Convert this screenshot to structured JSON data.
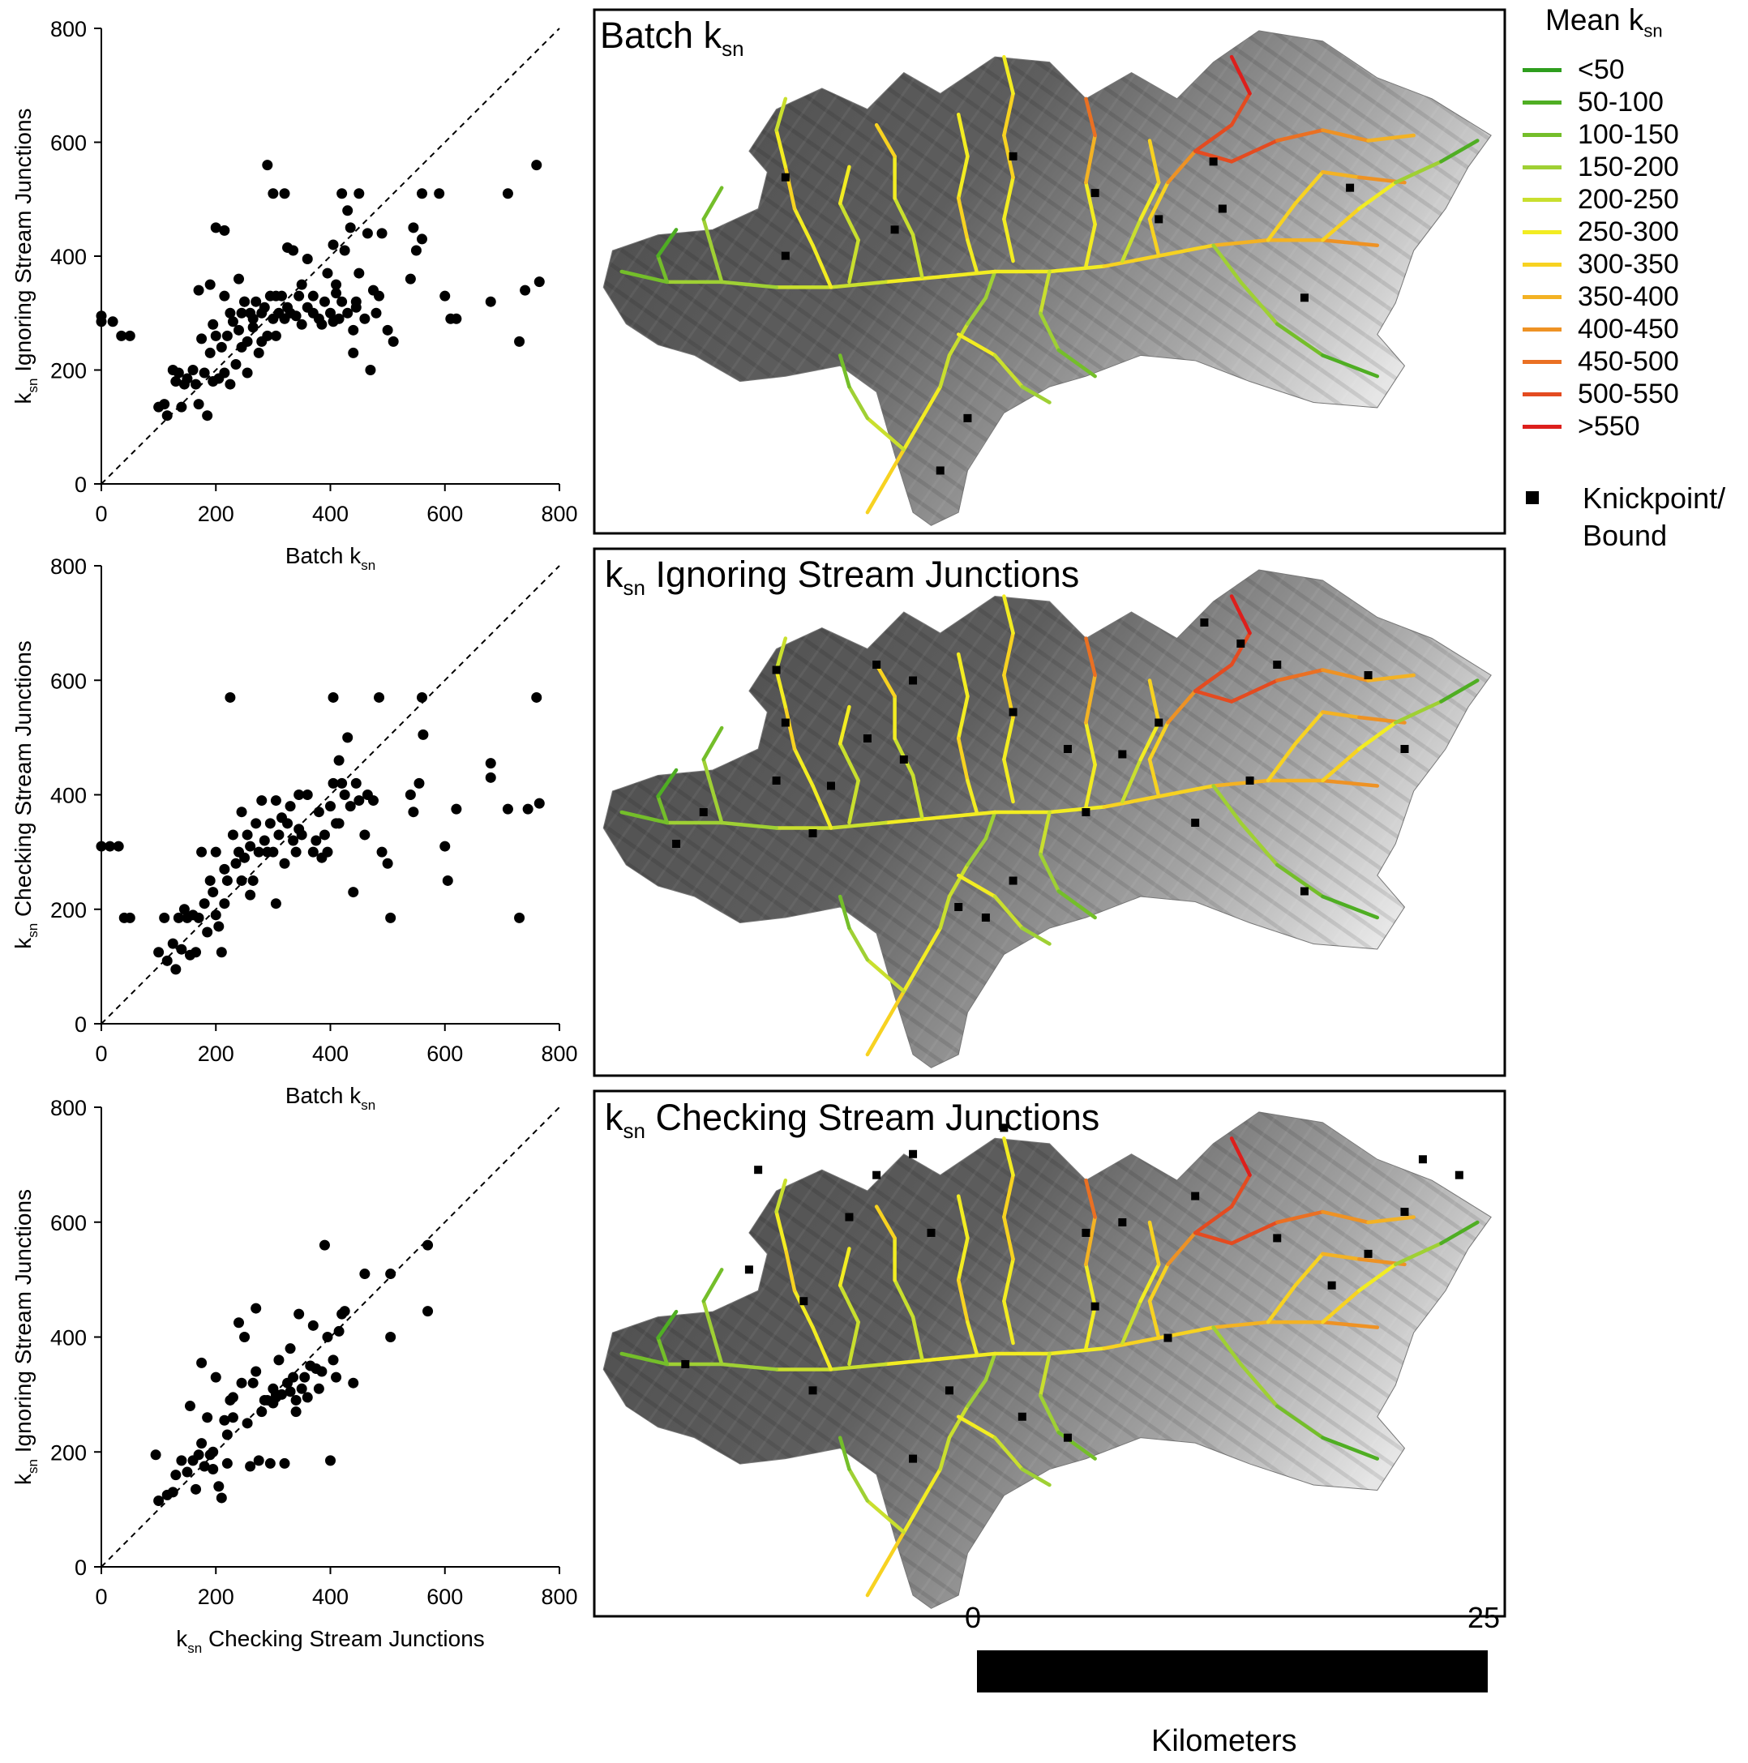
{
  "panels": [
    {
      "xlabel": {
        "base": "Batch k",
        "sub": "sn",
        "rest": ""
      },
      "ylabel": {
        "base": "k",
        "sub": "sn",
        "rest": " Ignoring Stream Junctions"
      },
      "map_title": {
        "base": "",
        "sub": "",
        "rest": "Batch k",
        "sub2": "sn"
      }
    },
    {
      "xlabel": {
        "base": "Batch k",
        "sub": "sn",
        "rest": ""
      },
      "ylabel": {
        "base": "k",
        "sub": "sn",
        "rest": " Checking Stream Junctions"
      },
      "map_title": {
        "base": "k",
        "sub": "sn",
        "rest": " Ignoring Stream Junctions",
        "sub2": ""
      }
    },
    {
      "xlabel": {
        "base": "k",
        "sub": "sn",
        "rest": " Checking Stream Junctions"
      },
      "ylabel": {
        "base": "k",
        "sub": "sn",
        "rest": " Ignoring Stream Junctions"
      },
      "map_title": {
        "base": "k",
        "sub": "sn",
        "rest": " Checking Stream Junctions",
        "sub2": ""
      }
    }
  ],
  "legend": {
    "title_base": "Mean k",
    "title_sub": "sn",
    "items": [
      {
        "label": "<50",
        "color": "#2e9e1e"
      },
      {
        "label": "50-100",
        "color": "#4fae23"
      },
      {
        "label": "100-150",
        "color": "#74be2a"
      },
      {
        "label": "150-200",
        "color": "#9fd034"
      },
      {
        "label": "200-250",
        "color": "#c9df2e"
      },
      {
        "label": "250-300",
        "color": "#f2ec22"
      },
      {
        "label": "300-350",
        "color": "#f7d221"
      },
      {
        "label": "350-400",
        "color": "#f3b224"
      },
      {
        "label": "400-450",
        "color": "#ee9224"
      },
      {
        "label": "450-500",
        "color": "#ea7023"
      },
      {
        "label": "500-550",
        "color": "#e44b20"
      },
      {
        "label": ">550",
        "color": "#dd1f1c"
      }
    ],
    "knickpoint_label_line1": "Knickpoint/",
    "knickpoint_label_line2": "Bound"
  },
  "scalebar": {
    "start": "0",
    "end": "25",
    "unit": "Kilometers"
  },
  "chart_data": [
    {
      "type": "scatter",
      "title": "",
      "xlabel": "Batch k_sn",
      "ylabel": "k_sn Ignoring Stream Junctions",
      "xlim": [
        0,
        800
      ],
      "ylim": [
        0,
        800
      ],
      "xticks": [
        0,
        200,
        400,
        600,
        800
      ],
      "yticks": [
        0,
        200,
        400,
        600,
        800
      ],
      "reference_line": "1:1 dashed",
      "points": [
        [
          0,
          295
        ],
        [
          0,
          285
        ],
        [
          20,
          285
        ],
        [
          35,
          260
        ],
        [
          50,
          260
        ],
        [
          100,
          135
        ],
        [
          110,
          140
        ],
        [
          115,
          120
        ],
        [
          125,
          200
        ],
        [
          130,
          180
        ],
        [
          135,
          195
        ],
        [
          140,
          135
        ],
        [
          145,
          175
        ],
        [
          150,
          185
        ],
        [
          160,
          200
        ],
        [
          165,
          175
        ],
        [
          170,
          140
        ],
        [
          175,
          255
        ],
        [
          180,
          195
        ],
        [
          185,
          120
        ],
        [
          190,
          230
        ],
        [
          195,
          280
        ],
        [
          200,
          260
        ],
        [
          205,
          185
        ],
        [
          210,
          240
        ],
        [
          215,
          195
        ],
        [
          220,
          260
        ],
        [
          225,
          300
        ],
        [
          230,
          285
        ],
        [
          235,
          210
        ],
        [
          240,
          270
        ],
        [
          245,
          300
        ],
        [
          250,
          320
        ],
        [
          255,
          250
        ],
        [
          260,
          300
        ],
        [
          265,
          290
        ],
        [
          270,
          320
        ],
        [
          275,
          230
        ],
        [
          280,
          300
        ],
        [
          285,
          310
        ],
        [
          290,
          260
        ],
        [
          295,
          330
        ],
        [
          300,
          290
        ],
        [
          305,
          260
        ],
        [
          310,
          300
        ],
        [
          315,
          330
        ],
        [
          320,
          290
        ],
        [
          325,
          310
        ],
        [
          330,
          300
        ],
        [
          335,
          410
        ],
        [
          340,
          295
        ],
        [
          345,
          330
        ],
        [
          350,
          280
        ],
        [
          360,
          310
        ],
        [
          370,
          330
        ],
        [
          380,
          290
        ],
        [
          390,
          320
        ],
        [
          395,
          370
        ],
        [
          400,
          300
        ],
        [
          405,
          285
        ],
        [
          410,
          350
        ],
        [
          415,
          290
        ],
        [
          420,
          320
        ],
        [
          425,
          410
        ],
        [
          430,
          300
        ],
        [
          435,
          450
        ],
        [
          440,
          270
        ],
        [
          445,
          310
        ],
        [
          450,
          370
        ],
        [
          460,
          290
        ],
        [
          465,
          440
        ],
        [
          470,
          200
        ],
        [
          480,
          300
        ],
        [
          485,
          330
        ],
        [
          490,
          440
        ],
        [
          500,
          270
        ],
        [
          510,
          250
        ],
        [
          540,
          360
        ],
        [
          550,
          410
        ],
        [
          560,
          430
        ],
        [
          600,
          330
        ],
        [
          610,
          290
        ],
        [
          620,
          290
        ],
        [
          680,
          320
        ],
        [
          730,
          250
        ],
        [
          740,
          340
        ],
        [
          760,
          560
        ],
        [
          765,
          355
        ],
        [
          420,
          510
        ],
        [
          430,
          480
        ],
        [
          450,
          510
        ],
        [
          290,
          560
        ],
        [
          200,
          450
        ],
        [
          215,
          445
        ],
        [
          170,
          340
        ],
        [
          190,
          350
        ],
        [
          215,
          330
        ],
        [
          325,
          415
        ],
        [
          360,
          395
        ],
        [
          305,
          330
        ],
        [
          250,
          320
        ],
        [
          240,
          360
        ],
        [
          280,
          250
        ],
        [
          265,
          275
        ],
        [
          410,
          335
        ],
        [
          300,
          510
        ],
        [
          320,
          510
        ],
        [
          590,
          510
        ],
        [
          710,
          510
        ],
        [
          560,
          510
        ],
        [
          545,
          450
        ],
        [
          440,
          230
        ],
        [
          255,
          195
        ],
        [
          225,
          175
        ],
        [
          195,
          180
        ],
        [
          245,
          240
        ],
        [
          350,
          350
        ],
        [
          370,
          300
        ],
        [
          385,
          280
        ],
        [
          475,
          340
        ],
        [
          445,
          320
        ],
        [
          405,
          420
        ]
      ]
    },
    {
      "type": "scatter",
      "title": "",
      "xlabel": "Batch k_sn",
      "ylabel": "k_sn Checking Stream Junctions",
      "xlim": [
        0,
        800
      ],
      "ylim": [
        0,
        800
      ],
      "xticks": [
        0,
        200,
        400,
        600,
        800
      ],
      "yticks": [
        0,
        200,
        400,
        600,
        800
      ],
      "reference_line": "1:1 dashed",
      "points": [
        [
          0,
          310
        ],
        [
          15,
          310
        ],
        [
          30,
          310
        ],
        [
          40,
          185
        ],
        [
          50,
          185
        ],
        [
          100,
          125
        ],
        [
          110,
          185
        ],
        [
          115,
          110
        ],
        [
          125,
          140
        ],
        [
          130,
          95
        ],
        [
          135,
          185
        ],
        [
          140,
          130
        ],
        [
          145,
          200
        ],
        [
          150,
          185
        ],
        [
          155,
          120
        ],
        [
          160,
          190
        ],
        [
          165,
          125
        ],
        [
          170,
          185
        ],
        [
          175,
          300
        ],
        [
          180,
          210
        ],
        [
          185,
          160
        ],
        [
          190,
          250
        ],
        [
          195,
          230
        ],
        [
          200,
          190
        ],
        [
          205,
          170
        ],
        [
          210,
          125
        ],
        [
          215,
          210
        ],
        [
          220,
          250
        ],
        [
          225,
          570
        ],
        [
          230,
          330
        ],
        [
          235,
          280
        ],
        [
          240,
          300
        ],
        [
          245,
          370
        ],
        [
          250,
          290
        ],
        [
          255,
          330
        ],
        [
          260,
          310
        ],
        [
          265,
          250
        ],
        [
          270,
          350
        ],
        [
          275,
          300
        ],
        [
          280,
          390
        ],
        [
          285,
          320
        ],
        [
          290,
          300
        ],
        [
          295,
          350
        ],
        [
          300,
          300
        ],
        [
          305,
          390
        ],
        [
          310,
          330
        ],
        [
          315,
          360
        ],
        [
          320,
          280
        ],
        [
          325,
          350
        ],
        [
          330,
          380
        ],
        [
          335,
          320
        ],
        [
          340,
          300
        ],
        [
          345,
          400
        ],
        [
          350,
          330
        ],
        [
          360,
          400
        ],
        [
          370,
          300
        ],
        [
          380,
          370
        ],
        [
          390,
          330
        ],
        [
          395,
          300
        ],
        [
          400,
          380
        ],
        [
          405,
          420
        ],
        [
          410,
          350
        ],
        [
          415,
          460
        ],
        [
          420,
          420
        ],
        [
          425,
          400
        ],
        [
          430,
          500
        ],
        [
          435,
          380
        ],
        [
          440,
          230
        ],
        [
          445,
          420
        ],
        [
          450,
          390
        ],
        [
          460,
          330
        ],
        [
          465,
          400
        ],
        [
          475,
          390
        ],
        [
          490,
          300
        ],
        [
          500,
          280
        ],
        [
          505,
          185
        ],
        [
          540,
          400
        ],
        [
          545,
          370
        ],
        [
          555,
          420
        ],
        [
          560,
          570
        ],
        [
          562,
          505
        ],
        [
          600,
          310
        ],
        [
          605,
          250
        ],
        [
          620,
          375
        ],
        [
          680,
          455
        ],
        [
          680,
          430
        ],
        [
          710,
          375
        ],
        [
          730,
          185
        ],
        [
          745,
          375
        ],
        [
          760,
          570
        ],
        [
          765,
          385
        ],
        [
          405,
          570
        ],
        [
          485,
          570
        ],
        [
          305,
          210
        ],
        [
          260,
          225
        ],
        [
          215,
          270
        ],
        [
          200,
          300
        ],
        [
          245,
          250
        ],
        [
          345,
          340
        ],
        [
          375,
          320
        ],
        [
          415,
          350
        ],
        [
          385,
          290
        ]
      ]
    },
    {
      "type": "scatter",
      "title": "",
      "xlabel": "k_sn Checking Stream Junctions",
      "ylabel": "k_sn Ignoring Stream Junctions",
      "xlim": [
        0,
        800
      ],
      "ylim": [
        0,
        800
      ],
      "xticks": [
        0,
        200,
        400,
        600,
        800
      ],
      "yticks": [
        0,
        200,
        400,
        600,
        800
      ],
      "reference_line": "1:1 dashed",
      "points": [
        [
          95,
          195
        ],
        [
          100,
          115
        ],
        [
          115,
          125
        ],
        [
          125,
          130
        ],
        [
          130,
          160
        ],
        [
          140,
          185
        ],
        [
          150,
          165
        ],
        [
          155,
          280
        ],
        [
          160,
          185
        ],
        [
          165,
          135
        ],
        [
          170,
          195
        ],
        [
          175,
          355
        ],
        [
          180,
          175
        ],
        [
          185,
          260
        ],
        [
          190,
          195
        ],
        [
          195,
          170
        ],
        [
          200,
          330
        ],
        [
          205,
          140
        ],
        [
          210,
          120
        ],
        [
          215,
          255
        ],
        [
          220,
          180
        ],
        [
          225,
          290
        ],
        [
          230,
          295
        ],
        [
          240,
          425
        ],
        [
          250,
          400
        ],
        [
          255,
          250
        ],
        [
          260,
          175
        ],
        [
          265,
          320
        ],
        [
          270,
          450
        ],
        [
          275,
          185
        ],
        [
          280,
          270
        ],
        [
          285,
          290
        ],
        [
          290,
          290
        ],
        [
          295,
          180
        ],
        [
          300,
          310
        ],
        [
          305,
          295
        ],
        [
          310,
          360
        ],
        [
          315,
          300
        ],
        [
          320,
          180
        ],
        [
          325,
          320
        ],
        [
          330,
          380
        ],
        [
          335,
          330
        ],
        [
          340,
          290
        ],
        [
          345,
          440
        ],
        [
          350,
          310
        ],
        [
          355,
          330
        ],
        [
          360,
          295
        ],
        [
          365,
          350
        ],
        [
          370,
          420
        ],
        [
          375,
          345
        ],
        [
          380,
          310
        ],
        [
          385,
          340
        ],
        [
          390,
          560
        ],
        [
          395,
          400
        ],
        [
          400,
          185
        ],
        [
          405,
          360
        ],
        [
          410,
          330
        ],
        [
          415,
          410
        ],
        [
          420,
          440
        ],
        [
          425,
          445
        ],
        [
          440,
          320
        ],
        [
          460,
          510
        ],
        [
          505,
          510
        ],
        [
          505,
          400
        ],
        [
          570,
          560
        ],
        [
          570,
          445
        ],
        [
          230,
          260
        ],
        [
          245,
          320
        ],
        [
          270,
          340
        ],
        [
          305,
          300
        ],
        [
          340,
          270
        ],
        [
          220,
          230
        ],
        [
          195,
          200
        ],
        [
          175,
          215
        ],
        [
          300,
          285
        ],
        [
          330,
          305
        ]
      ]
    }
  ]
}
